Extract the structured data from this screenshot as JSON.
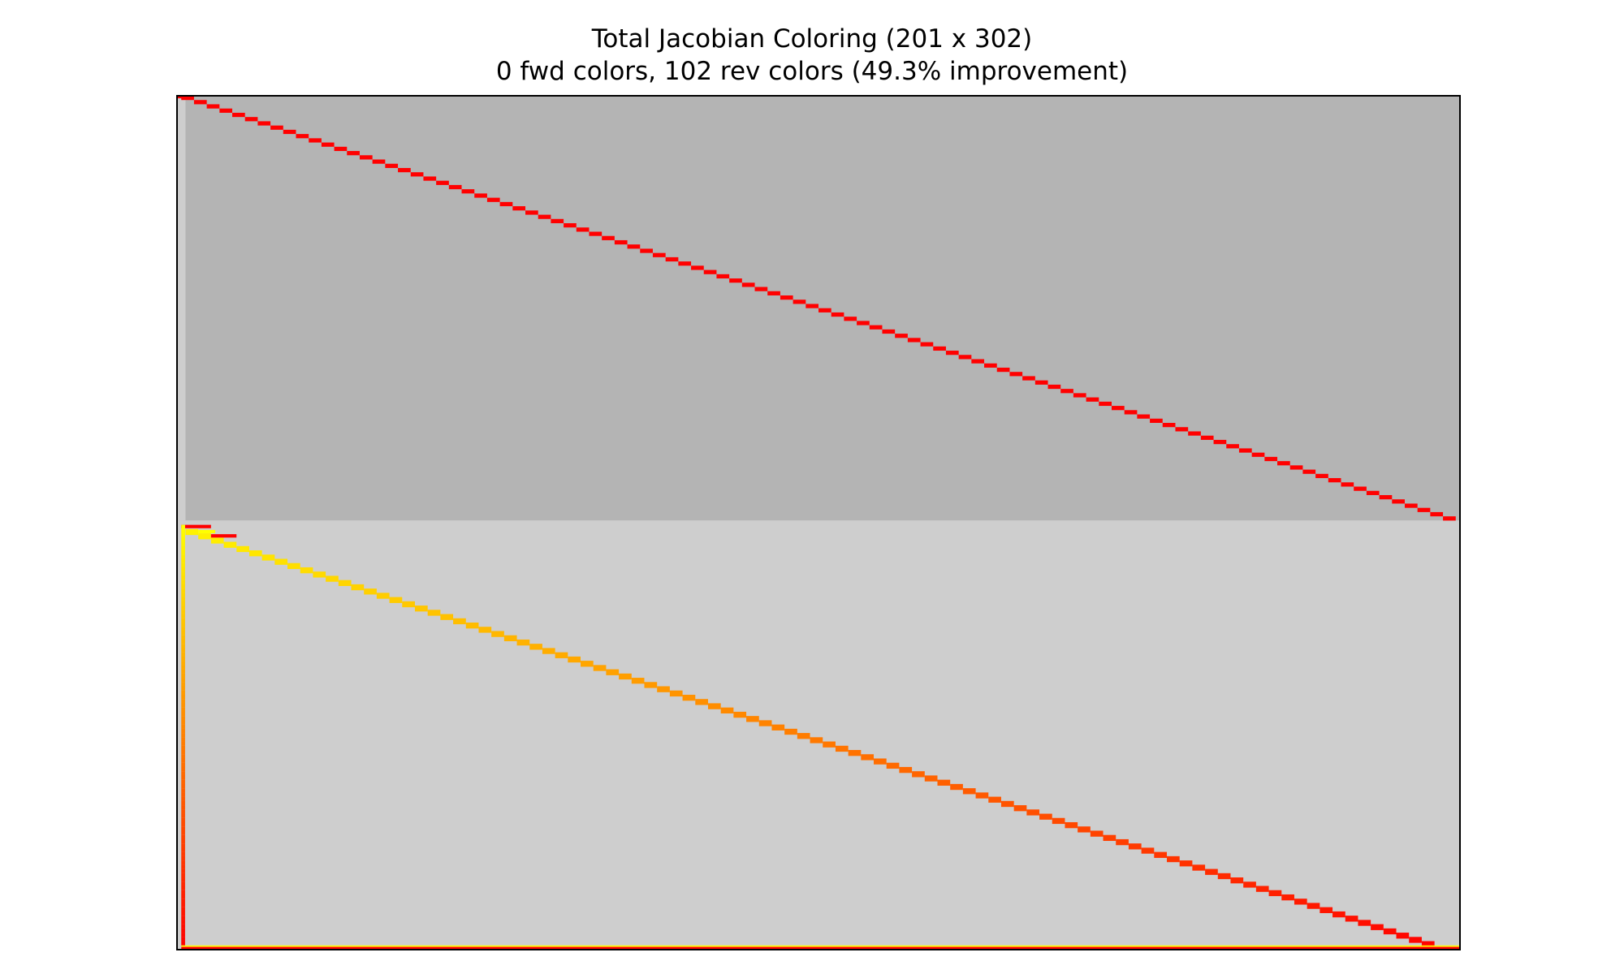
{
  "chart_data": {
    "type": "heatmap",
    "title": "Total Jacobian Coloring (201 x 302)",
    "subtitle": "0 fwd colors, 102 rev colors (49.3% improvement)",
    "rows": 201,
    "cols": 302,
    "fwd_colors": 0,
    "rev_colors": 102,
    "improvement_pct": 49.3,
    "axes_visible": false,
    "regions": [
      {
        "name": "upper block",
        "row_range": [
          0,
          100
        ],
        "fill": "#b4b4b4"
      },
      {
        "name": "lower block",
        "row_range": [
          100,
          201
        ],
        "fill": "#cecece"
      },
      {
        "name": "left column strip",
        "col_range": [
          0,
          2
        ],
        "row_range": [
          0,
          100
        ],
        "fill": "#cecece"
      }
    ],
    "patterns": [
      {
        "name": "upper diagonal",
        "row_range": [
          0,
          100
        ],
        "col_range": [
          0,
          302
        ],
        "step_cols": 3,
        "step_rows": 1,
        "colormap": "single",
        "color": "#ff0000"
      },
      {
        "name": "lower diagonal",
        "row_range": [
          102,
          200
        ],
        "col_range": [
          0,
          302
        ],
        "step_cols": 3,
        "step_rows": 1,
        "colormap": "yellow-to-red"
      },
      {
        "name": "first column",
        "row_range": [
          101,
          200
        ],
        "col": 1,
        "colormap": "yellow-to-red"
      },
      {
        "name": "last row",
        "row": 200,
        "col_range": [
          0,
          302
        ],
        "colormap": "yellow-red-bands"
      }
    ],
    "colors": {
      "upper_fill": "#b4b4b4",
      "lower_fill": "#cecece",
      "nonzero_red": "#ff0000",
      "nonzero_yellow": "#ffff00",
      "frame": "#000000"
    }
  }
}
